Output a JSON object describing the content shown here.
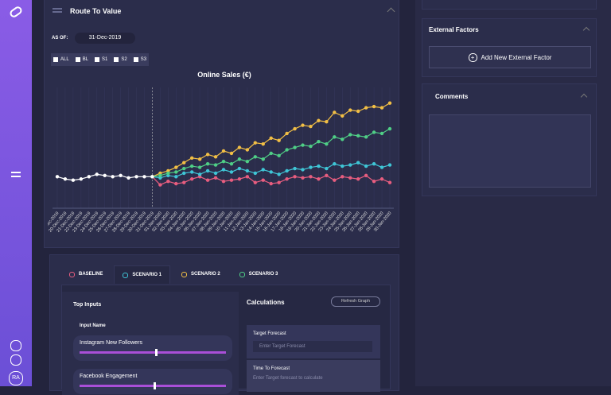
{
  "header": {
    "title": "Route To Value",
    "as_of_label": "AS OF:",
    "as_of": "31-Dec-2019"
  },
  "filters": [
    "ALL",
    "BL",
    "S1",
    "S2",
    "S3"
  ],
  "chart_data": {
    "type": "line",
    "title": "Online Sales (€)",
    "categories": [
      "19-Dec-2019",
      "20-Dec-2019",
      "21-Dec-2019",
      "22-Dec-2019",
      "23-Dec-2019",
      "24-Dec-2019",
      "25-Dec-2019",
      "26-Dec-2019",
      "27-Dec-2019",
      "28-Dec-2019",
      "29-Dec-2019",
      "30-Dec-2019",
      "31-Dec-2019",
      "01-Jan-2020",
      "02-Jan-2020",
      "03-Jan-2020",
      "04-Jan-2020",
      "05-Jan-2020",
      "06-Jan-2020",
      "07-Jan-2020",
      "08-Jan-2020",
      "09-Jan-2020",
      "10-Jan-2020",
      "11-Jan-2020",
      "12-Jan-2020",
      "13-Jan-2020",
      "14-Jan-2020",
      "15-Jan-2020",
      "16-Jan-2020",
      "17-Jan-2020",
      "18-Jan-2020",
      "19-Jan-2020",
      "20-Jan-2020",
      "21-Jan-2020",
      "22-Jan-2020",
      "23-Jan-2020",
      "24-Jan-2020",
      "25-Jan-2020",
      "26-Jan-2020",
      "27-Jan-2020",
      "28-Jan-2020",
      "29-Jan-2020",
      "30-Jan-2020"
    ],
    "ylim": [
      0,
      100
    ],
    "grid": true,
    "history": {
      "color": "#ffffff",
      "values": [
        27,
        25,
        24,
        25,
        27,
        29,
        28,
        27,
        28,
        26,
        27,
        27,
        27,
        null,
        null,
        null,
        null,
        null,
        null,
        null,
        null,
        null,
        null,
        null,
        null,
        null,
        null,
        null,
        null,
        null,
        null,
        null,
        null,
        null,
        null,
        null,
        null,
        null,
        null,
        null,
        null,
        null,
        null
      ]
    },
    "series": [
      {
        "name": "BASELINE",
        "color": "#e85d7f",
        "values": [
          null,
          null,
          null,
          null,
          null,
          null,
          null,
          null,
          null,
          null,
          null,
          null,
          27,
          20,
          23,
          21,
          22,
          25,
          27,
          24,
          26,
          23,
          24,
          25,
          27,
          22,
          24,
          21,
          22,
          25,
          27,
          26,
          27,
          25,
          28,
          24,
          27,
          26,
          25,
          28,
          23,
          25,
          22
        ]
      },
      {
        "name": "SCENARIO 1",
        "color": "#3fc6d6",
        "values": [
          null,
          null,
          null,
          null,
          null,
          null,
          null,
          null,
          null,
          null,
          null,
          null,
          27,
          26,
          28,
          27,
          30,
          31,
          29,
          32,
          30,
          33,
          31,
          34,
          32,
          30,
          33,
          31,
          29,
          32,
          34,
          33,
          35,
          36,
          34,
          38,
          36,
          37,
          39,
          36,
          38,
          35,
          37
        ]
      },
      {
        "name": "SCENARIO 2",
        "color": "#f2bf45",
        "values": [
          null,
          null,
          null,
          null,
          null,
          null,
          null,
          null,
          null,
          null,
          null,
          null,
          27,
          30,
          32,
          35,
          39,
          43,
          42,
          46,
          44,
          49,
          47,
          52,
          50,
          56,
          55,
          60,
          58,
          64,
          68,
          71,
          70,
          75,
          74,
          82,
          79,
          84,
          83,
          86,
          87,
          86,
          90
        ]
      },
      {
        "name": "SCENARIO 3",
        "color": "#4fcf86",
        "values": [
          null,
          null,
          null,
          null,
          null,
          null,
          null,
          null,
          null,
          null,
          null,
          null,
          27,
          28,
          30,
          31,
          34,
          36,
          35,
          38,
          37,
          40,
          38,
          42,
          40,
          44,
          42,
          47,
          45,
          50,
          52,
          54,
          53,
          57,
          55,
          61,
          59,
          63,
          62,
          61,
          65,
          64,
          68
        ]
      }
    ]
  },
  "inputs": {
    "title": "Top Inputs",
    "column": "Input Name",
    "items": [
      "Instagram New Followers",
      "Facebook Engagement"
    ]
  },
  "calculations": {
    "title": "Calculations",
    "refresh": "Refresh Graph",
    "target_label": "Target Forecast",
    "target_placeholder": "Enter Target Forecast",
    "time_label": "Time To Forecast",
    "time_placeholder": "Enter Target forecast to calculate"
  },
  "external": {
    "title": "External Factors",
    "button": "Add New External Factor"
  },
  "comments": {
    "title": "Comments"
  },
  "user": {
    "initials": "RA"
  }
}
